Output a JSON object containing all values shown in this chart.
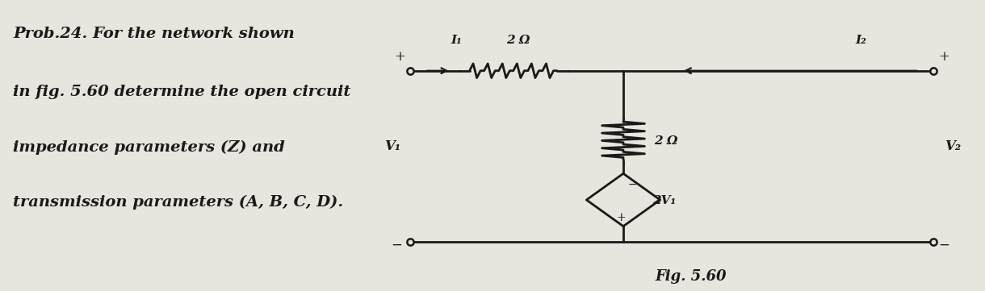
{
  "bg_color": "#e8e4de",
  "text_color": "#1a1a1a",
  "title_lines": [
    "Prob.24. For the network shown",
    "in fig. 5.60 determine the open circuit",
    "impedance parameters (Z) and",
    "transmission parameters (A, B, C, D)."
  ],
  "fig_label": "Fig. 5.60",
  "circuit": {
    "res_series_label": "2 Ω",
    "res_shunt_label": "2 Ω",
    "v_source_label": "2V₁",
    "I1_label": "I₁",
    "I2_label": "I₂",
    "V1_label": "V₁",
    "V2_label": "V₂"
  }
}
